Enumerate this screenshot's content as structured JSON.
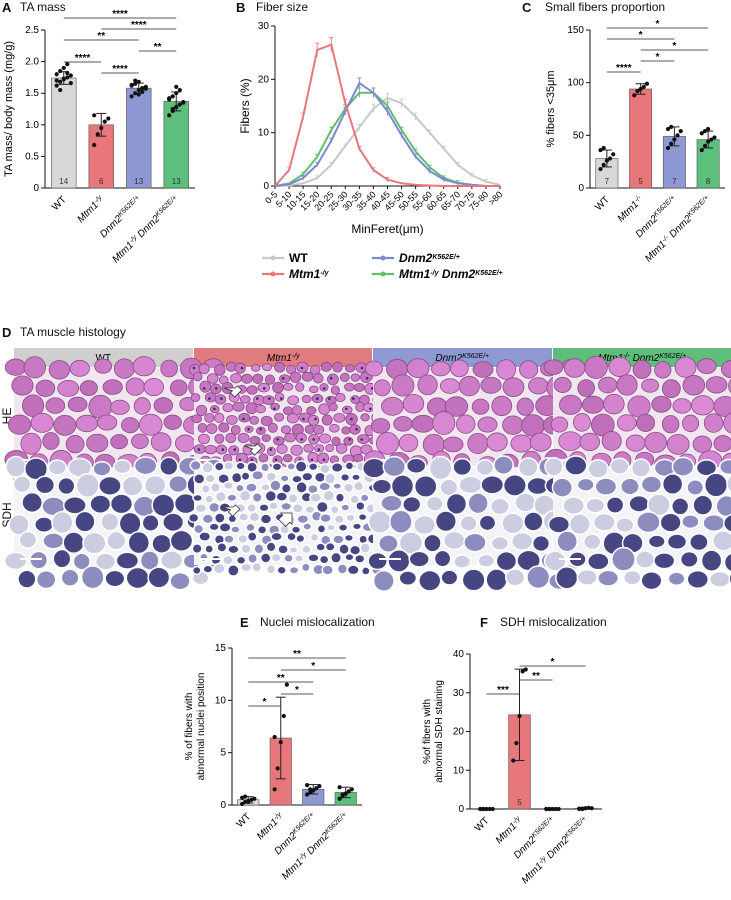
{
  "panels": {
    "A": {
      "letter": "A",
      "title": "TA mass"
    },
    "B": {
      "letter": "B",
      "title": "Fiber size"
    },
    "C": {
      "letter": "C",
      "title": "Small fibers proportion"
    },
    "D": {
      "letter": "D",
      "title": "TA muscle histology"
    },
    "E": {
      "letter": "E",
      "title": "Nuclei mislocalization"
    },
    "F": {
      "letter": "F",
      "title": "SDH mislocalization"
    }
  },
  "colors": {
    "wt": "#d8d8d8",
    "mtm1": "#e8777c",
    "dnm2": "#8e98d3",
    "double": "#5cbf7c",
    "wt_line": "#c8c8c8",
    "mtm1_line": "#e8777c",
    "dnm2_line": "#7c88cf",
    "double_line": "#5cbf6c"
  },
  "histology": {
    "columns": [
      "WT",
      "Mtm1",
      "Dnm2",
      "Mtm1 Dnm2"
    ],
    "rows": [
      "HE",
      "SDH"
    ]
  },
  "chart_data": [
    {
      "id": "A",
      "type": "bar",
      "categories": [
        "WT",
        "Mtm1-/y",
        "Dnm2K562E/+",
        "Mtm1-/y Dnm2K562E/+"
      ],
      "values": [
        1.74,
        1.0,
        1.58,
        1.37
      ],
      "errors": [
        0.1,
        0.18,
        0.08,
        0.15
      ],
      "n": [
        "14",
        "6",
        "13",
        "13"
      ],
      "points": [
        [
          1.62,
          1.68,
          1.72,
          1.75,
          1.78,
          1.8,
          1.85,
          1.9,
          1.96,
          1.66,
          1.7,
          1.55,
          1.73,
          1.82
        ],
        [
          0.68,
          0.85,
          0.95,
          1.05,
          1.1,
          1.15
        ],
        [
          1.45,
          1.5,
          1.55,
          1.58,
          1.6,
          1.62,
          1.65,
          1.68,
          1.52,
          1.57,
          1.63,
          1.7,
          1.48
        ],
        [
          1.15,
          1.22,
          1.28,
          1.32,
          1.36,
          1.4,
          1.45,
          1.5,
          1.55,
          1.35,
          1.42,
          1.25,
          1.6
        ]
      ],
      "ylabel": "TA mass/ body mass (mg/g)",
      "ylim": [
        0,
        2.5
      ],
      "yticks": [
        "0",
        "0.5",
        "1.0",
        "1.5",
        "2.0",
        "2.5"
      ],
      "significance": [
        {
          "from": 0,
          "to": 3,
          "label": "****"
        },
        {
          "from": 1,
          "to": 3,
          "label": "****"
        },
        {
          "from": 0,
          "to": 2,
          "label": "**"
        },
        {
          "from": 2,
          "to": 3,
          "label": "**"
        },
        {
          "from": 0,
          "to": 1,
          "label": "****"
        },
        {
          "from": 1,
          "to": 2,
          "label": "****"
        }
      ]
    },
    {
      "id": "B",
      "type": "line",
      "categories": [
        "0-5",
        "5-10",
        "10-15",
        "15-20",
        "20-25",
        "25-30",
        "30-35",
        "35-40",
        "40-45",
        "45-50",
        "50-55",
        "55-60",
        "60-65",
        "65-70",
        "70-75",
        "75-80",
        ">80"
      ],
      "series": [
        {
          "name": "WT",
          "values": [
            0,
            0.1,
            0.5,
            1.5,
            4,
            7.5,
            11,
            14.5,
            16.5,
            15.5,
            13,
            10,
            7,
            4,
            2,
            0.8,
            0.2
          ]
        },
        {
          "name": "Mtm1-/y",
          "values": [
            0,
            3,
            13,
            25.5,
            26.5,
            15.5,
            7,
            3,
            1.2,
            0.5,
            0.2,
            0.1,
            0,
            0,
            0,
            0,
            0
          ]
        },
        {
          "name": "Dnm2K562E/+",
          "values": [
            0,
            0.3,
            1.5,
            4,
            8.5,
            14,
            19.3,
            17.5,
            14,
            9.5,
            5.5,
            2.8,
            1.2,
            0.5,
            0.2,
            0,
            0
          ]
        },
        {
          "name": "Mtm1-/y Dnm2K562E/+",
          "values": [
            0,
            0.5,
            2.2,
            5.5,
            10.5,
            14.5,
            17.5,
            17.5,
            15,
            10.5,
            6.5,
            3.5,
            1.5,
            0.6,
            0.2,
            0,
            0
          ]
        }
      ],
      "xlabel": "MinFeret(μm)",
      "ylabel": "Fibers (%)",
      "ylim": [
        0,
        30
      ],
      "yticks": [
        "0",
        "10",
        "20",
        "30"
      ]
    },
    {
      "id": "C",
      "type": "bar",
      "categories": [
        "WT",
        "Mtm1-/-",
        "Dnm2K562E/+",
        "Mtm1-/- Dnm2K562E/+"
      ],
      "values": [
        28,
        94,
        49,
        46
      ],
      "errors": [
        8,
        5,
        9,
        8
      ],
      "n": [
        "7",
        "5",
        "7",
        "8"
      ],
      "points": [
        [
          18,
          22,
          26,
          28,
          32,
          36,
          38
        ],
        [
          88,
          92,
          94,
          96,
          99
        ],
        [
          38,
          42,
          46,
          50,
          54,
          56,
          58
        ],
        [
          36,
          40,
          44,
          46,
          48,
          52,
          54,
          56
        ]
      ],
      "ylabel": "% fibers <35μm",
      "ylim": [
        0,
        150
      ],
      "yticks": [
        "0",
        "50",
        "100",
        "150"
      ],
      "significance": [
        {
          "from": 0,
          "to": 3,
          "label": "*"
        },
        {
          "from": 0,
          "to": 2,
          "label": "*"
        },
        {
          "from": 1,
          "to": 3,
          "label": "*"
        },
        {
          "from": 1,
          "to": 2,
          "label": "*"
        },
        {
          "from": 0,
          "to": 1,
          "label": "****"
        }
      ]
    },
    {
      "id": "E",
      "type": "bar",
      "categories": [
        "WT",
        "Mtm1-/y",
        "Dnm2K562E/+",
        "Mtm1-/y Dnm2K562E/+"
      ],
      "values": [
        0.5,
        6.4,
        1.5,
        1.2
      ],
      "errors": [
        0.3,
        3.9,
        0.45,
        0.5
      ],
      "n": [
        "",
        "",
        "",
        ""
      ],
      "points": [
        [
          0.1,
          0.3,
          0.4,
          0.5,
          0.6,
          0.7,
          0.8,
          0.3
        ],
        [
          1.5,
          3.5,
          6.0,
          8.5,
          11.5,
          6.5
        ],
        [
          1.0,
          1.2,
          1.4,
          1.6,
          1.8,
          1.9,
          1.5
        ],
        [
          0.6,
          0.9,
          1.1,
          1.3,
          1.5,
          1.7,
          1.0
        ]
      ],
      "ylabel_lines": [
        "% of fibers with",
        "abnormal nuclei position"
      ],
      "ylim": [
        0,
        15
      ],
      "yticks": [
        "0",
        "5",
        "10",
        "15"
      ],
      "significance": [
        {
          "from": 0,
          "to": 3,
          "label": "**"
        },
        {
          "from": 1,
          "to": 3,
          "label": "*"
        },
        {
          "from": 0,
          "to": 2,
          "label": "**"
        },
        {
          "from": 1,
          "to": 2,
          "label": "*"
        },
        {
          "from": 0,
          "to": 1,
          "label": "*"
        }
      ]
    },
    {
      "id": "F",
      "type": "bar",
      "categories": [
        "WT",
        "Mtm1-/y",
        "Dnm2K562E/+",
        "Mtm1-/y Dnm2K562E/+"
      ],
      "values": [
        0,
        24.3,
        0.1,
        0.2
      ],
      "errors": [
        0,
        11.8,
        0,
        0
      ],
      "n": [
        "",
        "5",
        "",
        ""
      ],
      "points": [
        [
          0,
          0,
          0,
          0,
          0,
          0,
          0
        ],
        [
          12.5,
          17,
          24,
          35.5,
          36
        ],
        [
          0,
          0,
          0,
          0,
          0,
          0,
          0
        ],
        [
          0,
          0.1,
          0.2,
          0.3,
          0.2,
          0.1,
          0
        ]
      ],
      "ylabel_lines": [
        "%of fibers with",
        "abnormal SDH staining"
      ],
      "ylim": [
        0,
        40
      ],
      "yticks": [
        "0",
        "10",
        "20",
        "30",
        "40"
      ],
      "significance": [
        {
          "from": 1,
          "to": 3,
          "label": "*"
        },
        {
          "from": 1,
          "to": 2,
          "label": "**"
        },
        {
          "from": 0,
          "to": 1,
          "label": "***"
        }
      ]
    }
  ],
  "legend_B": [
    {
      "name": "WT",
      "key": "wt_line"
    },
    {
      "name": "Dnm2K562E/+",
      "key": "dnm2_line"
    },
    {
      "name": "Mtm1-/y",
      "key": "mtm1_line"
    },
    {
      "name": "Mtm1-/y Dnm2K562E/+",
      "key": "double_line"
    }
  ]
}
